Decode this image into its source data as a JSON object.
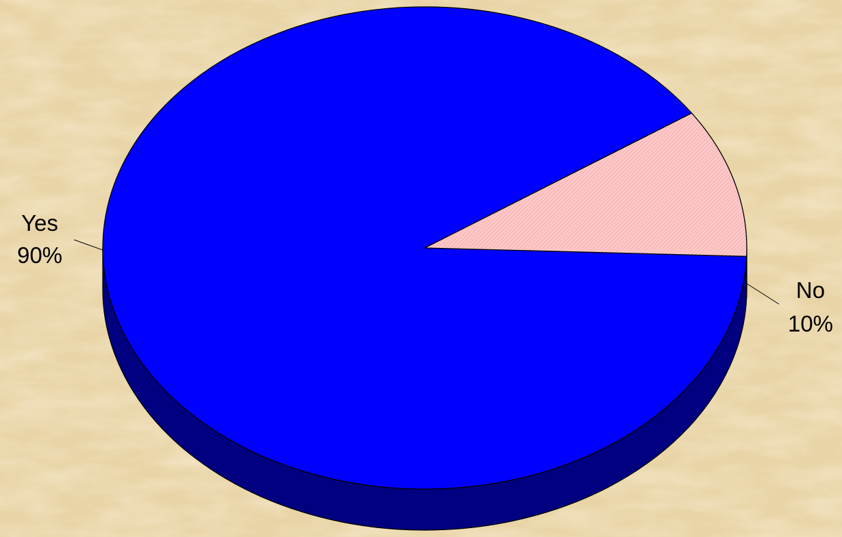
{
  "chart_data": {
    "type": "pie",
    "style": "3d",
    "legend": "none",
    "slices": [
      {
        "label": "Yes",
        "value": 90,
        "value_label": "90%",
        "color": "#0000FF",
        "side_color": "#000080"
      },
      {
        "label": "No",
        "value": 10,
        "value_label": "10%",
        "color": "#FFC0C0",
        "side_color": "#800000",
        "pattern": "diagonal-hatch"
      }
    ]
  },
  "background": {
    "base_color": "#E8D4A6",
    "texture": "parchment"
  }
}
